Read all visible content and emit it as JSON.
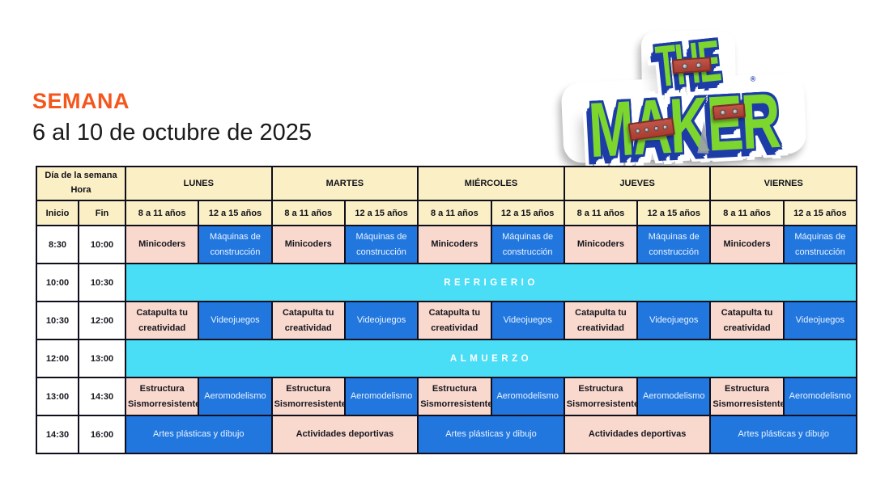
{
  "page": {
    "title": "SEMANA",
    "subtitle": "6 al 10 de octubre de 2025"
  },
  "logo": {
    "line1": "THE",
    "line2": "MAKER",
    "registered": "®"
  },
  "colors": {
    "accent_orange": "#F4571D",
    "header_yellow": "#FAEFC5",
    "cell_pink": "#F9D9CD",
    "cell_blue": "#2277DF",
    "band_cyan": "#4ADDF6",
    "border_dark": "#0E0E1C",
    "logo_green": "#7DD62E",
    "logo_blue": "#1D3CA8",
    "plate_red": "#A93B30"
  },
  "schedule": {
    "corner": {
      "line1": "Día de la semana",
      "line2": "Hora"
    },
    "time_headers": {
      "inicio": "Inicio",
      "fin": "Fin"
    },
    "days": [
      "LUNES",
      "MARTES",
      "MIÉRCOLES",
      "JUEVES",
      "VIERNES"
    ],
    "age_groups": [
      "8 a 11 años",
      "12 a 15 años"
    ],
    "rows": [
      {
        "inicio": "8:30",
        "fin": "10:00",
        "younger": "Minicoders",
        "older": "Máquinas de construcción"
      },
      {
        "inicio": "10:00",
        "fin": "10:30",
        "break_label": "REFRIGERIO"
      },
      {
        "inicio": "10:30",
        "fin": "12:00",
        "younger": "Catapulta tu creatividad",
        "older": "Videojuegos"
      },
      {
        "inicio": "12:00",
        "fin": "13:00",
        "break_label": "ALMUERZO"
      },
      {
        "inicio": "13:00",
        "fin": "14:30",
        "younger": "Estructura Sismorresistente",
        "older": "Aeromodelismo"
      },
      {
        "inicio": "14:30",
        "fin": "16:00",
        "by_day": [
          "Artes plásticas y dibujo",
          "Actividades deportivas",
          "Artes plásticas y dibujo",
          "Actividades deportivas",
          "Artes plásticas y dibujo"
        ]
      }
    ]
  }
}
